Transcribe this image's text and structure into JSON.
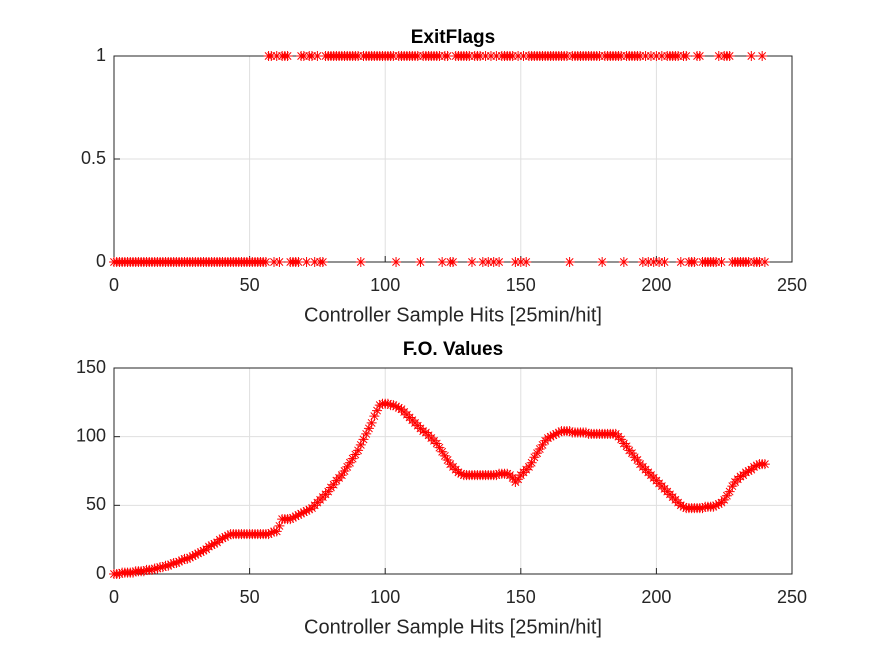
{
  "chart_data": [
    {
      "type": "scatter",
      "title": "ExitFlags",
      "xlabel": "Controller Sample Hits [25min/hit]",
      "x": [
        0,
        1,
        2,
        3,
        4,
        5,
        6,
        7,
        8,
        9,
        10,
        11,
        12,
        13,
        14,
        15,
        16,
        17,
        18,
        19,
        20,
        21,
        22,
        23,
        24,
        25,
        26,
        27,
        28,
        29,
        30,
        31,
        32,
        33,
        34,
        35,
        36,
        37,
        38,
        39,
        40,
        41,
        42,
        43,
        44,
        45,
        46,
        47,
        48,
        49,
        50,
        51,
        52,
        53,
        54,
        55,
        56,
        57,
        58,
        59,
        60,
        61,
        62,
        63,
        64,
        65,
        66,
        67,
        68,
        69,
        70,
        71,
        72,
        73,
        74,
        75,
        76,
        77,
        78,
        79,
        80,
        81,
        82,
        83,
        84,
        85,
        86,
        87,
        88,
        89,
        90,
        91,
        92,
        93,
        94,
        95,
        96,
        97,
        98,
        99,
        100,
        101,
        102,
        103,
        104,
        105,
        106,
        107,
        108,
        109,
        110,
        111,
        112,
        113,
        114,
        115,
        116,
        117,
        118,
        119,
        120,
        121,
        122,
        123,
        124,
        125,
        126,
        127,
        128,
        129,
        130,
        131,
        132,
        133,
        134,
        135,
        136,
        137,
        138,
        139,
        140,
        141,
        142,
        143,
        144,
        145,
        146,
        147,
        148,
        149,
        150,
        151,
        152,
        153,
        154,
        155,
        156,
        157,
        158,
        159,
        160,
        161,
        162,
        163,
        164,
        165,
        166,
        167,
        168,
        169,
        170,
        171,
        172,
        173,
        174,
        175,
        176,
        177,
        178,
        179,
        180,
        181,
        182,
        183,
        184,
        185,
        186,
        187,
        188,
        189,
        190,
        191,
        192,
        193,
        194,
        195,
        196,
        197,
        198,
        199,
        200,
        201,
        202,
        203,
        204,
        205,
        206,
        207,
        208,
        209,
        210,
        211,
        212,
        213,
        214,
        215,
        216,
        217,
        218,
        219,
        220,
        221,
        222,
        223,
        224,
        225,
        226,
        227,
        228,
        229,
        230,
        231,
        232,
        233,
        234,
        235,
        236,
        237,
        238,
        239,
        240
      ],
      "values": [
        0,
        0,
        0,
        0,
        0,
        0,
        0,
        0,
        0,
        0,
        0,
        0,
        0,
        0,
        0,
        0,
        0,
        0,
        0,
        0,
        0,
        0,
        0,
        0,
        0,
        0,
        0,
        0,
        0,
        0,
        0,
        0,
        0,
        0,
        0,
        0,
        0,
        0,
        0,
        0,
        0,
        0,
        0,
        0,
        0,
        0,
        0,
        0,
        0,
        0,
        0,
        0,
        0,
        0,
        0,
        0,
        0,
        1,
        1,
        0,
        1,
        0,
        1,
        1,
        1,
        0,
        0,
        0,
        0,
        1,
        1,
        0,
        1,
        1,
        0,
        1,
        0,
        0,
        1,
        1,
        1,
        1,
        1,
        1,
        1,
        1,
        1,
        1,
        1,
        1,
        1,
        0,
        1,
        1,
        1,
        1,
        1,
        1,
        1,
        1,
        1,
        1,
        1,
        1,
        0,
        1,
        1,
        1,
        1,
        1,
        1,
        1,
        1,
        0,
        1,
        1,
        1,
        1,
        1,
        1,
        1,
        0,
        1,
        1,
        0,
        0,
        1,
        1,
        1,
        1,
        1,
        1,
        0,
        1,
        1,
        1,
        0,
        1,
        0,
        1,
        0,
        1,
        0,
        1,
        1,
        1,
        1,
        1,
        0,
        1,
        0,
        1,
        0,
        1,
        1,
        1,
        1,
        1,
        1,
        1,
        1,
        1,
        1,
        1,
        1,
        1,
        1,
        1,
        0,
        1,
        1,
        1,
        1,
        1,
        1,
        1,
        1,
        1,
        1,
        1,
        0,
        1,
        1,
        1,
        1,
        1,
        1,
        1,
        0,
        1,
        1,
        1,
        1,
        1,
        1,
        0,
        1,
        0,
        1,
        0,
        1,
        0,
        1,
        0,
        1,
        1,
        1,
        1,
        1,
        0,
        1,
        1,
        0,
        0,
        0,
        1,
        1,
        0,
        0,
        0,
        0,
        0,
        0,
        1,
        0,
        1,
        1,
        1,
        0,
        0,
        0,
        0,
        0,
        0,
        0,
        1,
        0,
        0,
        0,
        1,
        0
      ],
      "color": "#ff0000",
      "xlim": [
        0,
        250
      ],
      "ylim": [
        0,
        1
      ],
      "xticks": [
        0,
        50,
        100,
        150,
        200,
        250
      ],
      "yticks": [
        0,
        0.5,
        1
      ],
      "grid": true
    },
    {
      "type": "scatter",
      "title": "F.O. Values",
      "xlabel": "Controller Sample Hits [25min/hit]",
      "x": [
        0,
        1,
        2,
        3,
        4,
        5,
        6,
        7,
        8,
        9,
        10,
        11,
        12,
        13,
        14,
        15,
        16,
        17,
        18,
        19,
        20,
        21,
        22,
        23,
        24,
        25,
        26,
        27,
        28,
        29,
        30,
        31,
        32,
        33,
        34,
        35,
        36,
        37,
        38,
        39,
        40,
        41,
        42,
        43,
        44,
        45,
        46,
        47,
        48,
        49,
        50,
        51,
        52,
        53,
        54,
        55,
        56,
        57,
        58,
        59,
        60,
        61,
        62,
        63,
        64,
        65,
        66,
        67,
        68,
        69,
        70,
        71,
        72,
        73,
        74,
        75,
        76,
        77,
        78,
        79,
        80,
        81,
        82,
        83,
        84,
        85,
        86,
        87,
        88,
        89,
        90,
        91,
        92,
        93,
        94,
        95,
        96,
        97,
        98,
        99,
        100,
        101,
        102,
        103,
        104,
        105,
        106,
        107,
        108,
        109,
        110,
        111,
        112,
        113,
        114,
        115,
        116,
        117,
        118,
        119,
        120,
        121,
        122,
        123,
        124,
        125,
        126,
        127,
        128,
        129,
        130,
        131,
        132,
        133,
        134,
        135,
        136,
        137,
        138,
        139,
        140,
        141,
        142,
        143,
        144,
        145,
        146,
        147,
        148,
        149,
        150,
        151,
        152,
        153,
        154,
        155,
        156,
        157,
        158,
        159,
        160,
        161,
        162,
        163,
        164,
        165,
        166,
        167,
        168,
        169,
        170,
        171,
        172,
        173,
        174,
        175,
        176,
        177,
        178,
        179,
        180,
        181,
        182,
        183,
        184,
        185,
        186,
        187,
        188,
        189,
        190,
        191,
        192,
        193,
        194,
        195,
        196,
        197,
        198,
        199,
        200,
        201,
        202,
        203,
        204,
        205,
        206,
        207,
        208,
        209,
        210,
        211,
        212,
        213,
        214,
        215,
        216,
        217,
        218,
        219,
        220,
        221,
        222,
        223,
        224,
        225,
        226,
        227,
        228,
        229,
        230,
        231,
        232,
        233,
        234,
        235,
        236,
        237,
        238,
        239,
        240
      ],
      "values": [
        0,
        0,
        0,
        1,
        1,
        1,
        1,
        1,
        2,
        2,
        2,
        2,
        3,
        3,
        3,
        4,
        4,
        5,
        5,
        6,
        6,
        7,
        8,
        8,
        9,
        10,
        11,
        11,
        12,
        13,
        14,
        15,
        16,
        17,
        18,
        20,
        21,
        22,
        23,
        25,
        26,
        27,
        28,
        29,
        29,
        29,
        29,
        29,
        29,
        29,
        29,
        29,
        29,
        29,
        29,
        29,
        29,
        29,
        30,
        31,
        31,
        35,
        40,
        40,
        40,
        40,
        41,
        42,
        43,
        44,
        45,
        46,
        47,
        48,
        50,
        52,
        54,
        56,
        58,
        60,
        63,
        65,
        68,
        70,
        72,
        75,
        78,
        81,
        84,
        87,
        90,
        94,
        98,
        102,
        106,
        110,
        115,
        119,
        123,
        124,
        124,
        124,
        123,
        123,
        122,
        121,
        120,
        118,
        116,
        114,
        112,
        110,
        108,
        106,
        104,
        103,
        101,
        99,
        97,
        95,
        92,
        89,
        86,
        83,
        80,
        78,
        76,
        74,
        73,
        72,
        72,
        72,
        72,
        72,
        72,
        72,
        72,
        72,
        72,
        72,
        72,
        72,
        73,
        73,
        73,
        73,
        72,
        70,
        67,
        69,
        72,
        74,
        76,
        78,
        81,
        85,
        88,
        91,
        94,
        97,
        99,
        100,
        101,
        102,
        103,
        104,
        104,
        104,
        104,
        103,
        103,
        103,
        103,
        103,
        103,
        102,
        102,
        102,
        102,
        102,
        102,
        102,
        102,
        102,
        102,
        102,
        100,
        98,
        95,
        93,
        90,
        88,
        85,
        83,
        80,
        78,
        76,
        74,
        72,
        70,
        68,
        66,
        64,
        62,
        60,
        58,
        56,
        54,
        52,
        50,
        49,
        48,
        48,
        48,
        48,
        48,
        48,
        48,
        49,
        49,
        49,
        49,
        50,
        51,
        52,
        54,
        57,
        60,
        64,
        67,
        69,
        71,
        72,
        74,
        75,
        76,
        78,
        79,
        80,
        80,
        80
      ],
      "color": "#ff0000",
      "xlim": [
        0,
        250
      ],
      "ylim": [
        0,
        150
      ],
      "xticks": [
        0,
        50,
        100,
        150,
        200,
        250
      ],
      "yticks": [
        0,
        50,
        100,
        150
      ],
      "grid": true
    }
  ]
}
